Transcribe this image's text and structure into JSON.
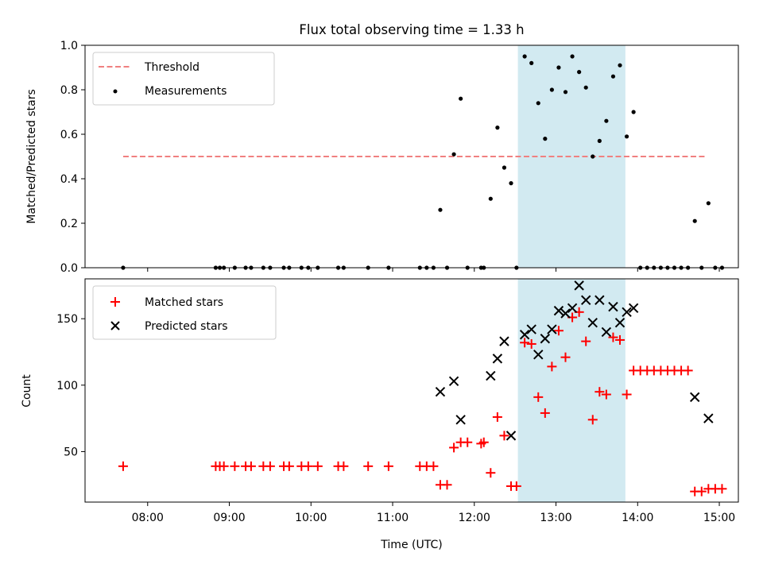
{
  "chart_data": [
    {
      "type": "scatter",
      "title": "Flux total observing time = 1.33 h",
      "xlabel": "",
      "ylabel": "Matched/Predicted stars",
      "xlim": [
        "07:14",
        "15:14"
      ],
      "ylim": [
        0,
        1.0
      ],
      "yticks": [
        "0.0",
        "0.2",
        "0.4",
        "0.6",
        "0.8",
        "1.0"
      ],
      "legend_position": "top-left",
      "shaded_interval": {
        "start": "12:32",
        "end": "13:51",
        "color": "#add8e6"
      },
      "threshold": {
        "name": "Threshold",
        "value": 0.5,
        "x_start": "07:42",
        "x_end": "14:50",
        "color": "#f08080",
        "style": "dashed"
      },
      "series": [
        {
          "name": "Measurements",
          "color": "#000000",
          "marker": "dot",
          "points": [
            [
              "07:42",
              0.0
            ],
            [
              "08:50",
              0.0
            ],
            [
              "08:53",
              0.0
            ],
            [
              "08:56",
              0.0
            ],
            [
              "09:04",
              0.0
            ],
            [
              "09:12",
              0.0
            ],
            [
              "09:16",
              0.0
            ],
            [
              "09:25",
              0.0
            ],
            [
              "09:30",
              0.0
            ],
            [
              "09:40",
              0.0
            ],
            [
              "09:44",
              0.0
            ],
            [
              "09:53",
              0.0
            ],
            [
              "09:58",
              0.0
            ],
            [
              "10:05",
              0.0
            ],
            [
              "10:20",
              0.0
            ],
            [
              "10:24",
              0.0
            ],
            [
              "10:42",
              0.0
            ],
            [
              "10:57",
              0.0
            ],
            [
              "11:20",
              0.0
            ],
            [
              "11:25",
              0.0
            ],
            [
              "11:30",
              0.0
            ],
            [
              "11:35",
              0.26
            ],
            [
              "11:40",
              0.0
            ],
            [
              "11:45",
              0.51
            ],
            [
              "11:50",
              0.76
            ],
            [
              "11:55",
              0.0
            ],
            [
              "12:05",
              0.0
            ],
            [
              "12:07",
              0.0
            ],
            [
              "12:12",
              0.31
            ],
            [
              "12:17",
              0.63
            ],
            [
              "12:22",
              0.45
            ],
            [
              "12:27",
              0.38
            ],
            [
              "12:31",
              0.0
            ],
            [
              "12:37",
              0.95
            ],
            [
              "12:42",
              0.92
            ],
            [
              "12:47",
              0.74
            ],
            [
              "12:52",
              0.58
            ],
            [
              "12:57",
              0.8
            ],
            [
              "13:02",
              0.9
            ],
            [
              "13:07",
              0.79
            ],
            [
              "13:12",
              0.95
            ],
            [
              "13:17",
              0.88
            ],
            [
              "13:22",
              0.81
            ],
            [
              "13:27",
              0.5
            ],
            [
              "13:32",
              0.57
            ],
            [
              "13:37",
              0.66
            ],
            [
              "13:42",
              0.86
            ],
            [
              "13:47",
              0.91
            ],
            [
              "13:52",
              0.59
            ],
            [
              "13:57",
              0.7
            ],
            [
              "14:02",
              0.0
            ],
            [
              "14:07",
              0.0
            ],
            [
              "14:12",
              0.0
            ],
            [
              "14:17",
              0.0
            ],
            [
              "14:22",
              0.0
            ],
            [
              "14:27",
              0.0
            ],
            [
              "14:32",
              0.0
            ],
            [
              "14:37",
              0.0
            ],
            [
              "14:42",
              0.21
            ],
            [
              "14:47",
              0.0
            ],
            [
              "14:52",
              0.29
            ],
            [
              "14:57",
              0.0
            ],
            [
              "15:02",
              0.0
            ]
          ]
        }
      ]
    },
    {
      "type": "scatter",
      "title": "",
      "xlabel": "Time (UTC)",
      "ylabel": "Count",
      "xlim": [
        "07:14",
        "15:14"
      ],
      "xticks": [
        "08:00",
        "09:00",
        "10:00",
        "11:00",
        "12:00",
        "13:00",
        "14:00",
        "15:00"
      ],
      "ylim": [
        12,
        180
      ],
      "yticks": [
        "50",
        "100",
        "150"
      ],
      "legend_position": "top-left",
      "shaded_interval": {
        "start": "12:32",
        "end": "13:51",
        "color": "#add8e6"
      },
      "series": [
        {
          "name": "Matched stars",
          "color": "#ff0000",
          "marker": "plus",
          "points": [
            [
              "07:42",
              39
            ],
            [
              "08:50",
              39
            ],
            [
              "08:53",
              39
            ],
            [
              "08:56",
              39
            ],
            [
              "09:04",
              39
            ],
            [
              "09:12",
              39
            ],
            [
              "09:16",
              39
            ],
            [
              "09:25",
              39
            ],
            [
              "09:30",
              39
            ],
            [
              "09:40",
              39
            ],
            [
              "09:44",
              39
            ],
            [
              "09:53",
              39
            ],
            [
              "09:58",
              39
            ],
            [
              "10:05",
              39
            ],
            [
              "10:20",
              39
            ],
            [
              "10:24",
              39
            ],
            [
              "10:42",
              39
            ],
            [
              "10:57",
              39
            ],
            [
              "11:20",
              39
            ],
            [
              "11:25",
              39
            ],
            [
              "11:30",
              39
            ],
            [
              "11:35",
              25
            ],
            [
              "11:40",
              25
            ],
            [
              "11:45",
              53
            ],
            [
              "11:50",
              57
            ],
            [
              "11:55",
              57
            ],
            [
              "12:05",
              56
            ],
            [
              "12:07",
              57
            ],
            [
              "12:12",
              34
            ],
            [
              "12:17",
              76
            ],
            [
              "12:22",
              62
            ],
            [
              "12:27",
              24
            ],
            [
              "12:31",
              24
            ],
            [
              "12:37",
              132
            ],
            [
              "12:42",
              131
            ],
            [
              "12:47",
              91
            ],
            [
              "12:52",
              79
            ],
            [
              "12:57",
              114
            ],
            [
              "13:02",
              141
            ],
            [
              "13:07",
              121
            ],
            [
              "13:12",
              151
            ],
            [
              "13:17",
              155
            ],
            [
              "13:22",
              133
            ],
            [
              "13:27",
              74
            ],
            [
              "13:32",
              95
            ],
            [
              "13:37",
              93
            ],
            [
              "13:42",
              136
            ],
            [
              "13:47",
              134
            ],
            [
              "13:52",
              93
            ],
            [
              "13:57",
              111
            ],
            [
              "14:02",
              111
            ],
            [
              "14:07",
              111
            ],
            [
              "14:12",
              111
            ],
            [
              "14:17",
              111
            ],
            [
              "14:22",
              111
            ],
            [
              "14:27",
              111
            ],
            [
              "14:32",
              111
            ],
            [
              "14:37",
              111
            ],
            [
              "14:42",
              20
            ],
            [
              "14:47",
              20
            ],
            [
              "14:52",
              22
            ],
            [
              "14:57",
              22
            ],
            [
              "15:02",
              22
            ]
          ]
        },
        {
          "name": "Predicted stars",
          "color": "#000000",
          "marker": "x",
          "points": [
            [
              "11:35",
              95
            ],
            [
              "11:45",
              103
            ],
            [
              "11:50",
              74
            ],
            [
              "12:12",
              107
            ],
            [
              "12:17",
              120
            ],
            [
              "12:22",
              133
            ],
            [
              "12:27",
              62
            ],
            [
              "12:37",
              138
            ],
            [
              "12:42",
              142
            ],
            [
              "12:47",
              123
            ],
            [
              "12:52",
              135
            ],
            [
              "12:57",
              142
            ],
            [
              "13:02",
              156
            ],
            [
              "13:07",
              154
            ],
            [
              "13:12",
              158
            ],
            [
              "13:17",
              175
            ],
            [
              "13:22",
              164
            ],
            [
              "13:27",
              147
            ],
            [
              "13:32",
              164
            ],
            [
              "13:37",
              140
            ],
            [
              "13:42",
              159
            ],
            [
              "13:47",
              147
            ],
            [
              "13:52",
              155
            ],
            [
              "13:57",
              158
            ],
            [
              "14:42",
              91
            ],
            [
              "14:52",
              75
            ]
          ]
        }
      ]
    }
  ]
}
